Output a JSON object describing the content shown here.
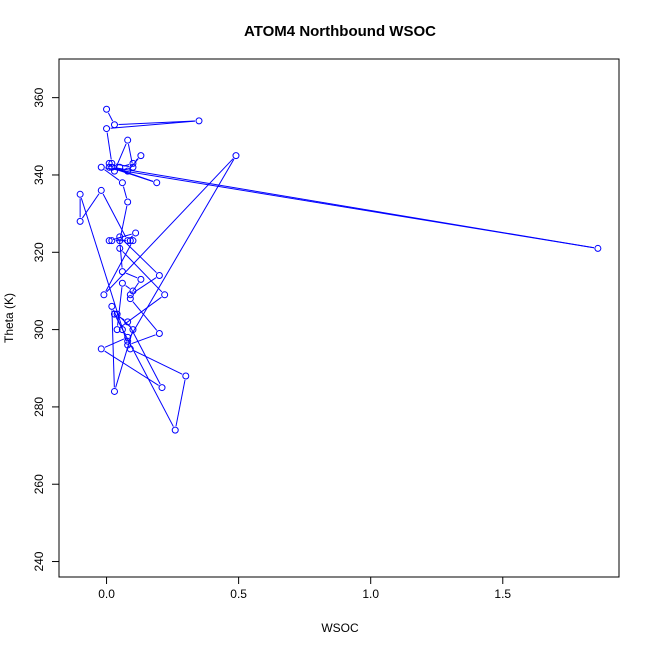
{
  "chart_data": {
    "type": "line",
    "title": "ATOM4 Northbound WSOC",
    "xlabel": "WSOC",
    "ylabel": "Theta (K)",
    "xlim": [
      -0.18,
      1.94
    ],
    "ylim": [
      236,
      370
    ],
    "x_ticks": [
      0.0,
      0.5,
      1.0,
      1.5
    ],
    "x_tick_labels": [
      "0.0",
      "0.5",
      "1.0",
      "1.5"
    ],
    "y_ticks": [
      240,
      260,
      280,
      300,
      320,
      340,
      360
    ],
    "y_tick_labels": [
      "240",
      "260",
      "280",
      "300",
      "320",
      "340",
      "360"
    ],
    "grid": false,
    "legend": "none",
    "marker": "open-circle",
    "series": [
      {
        "color": "#0000ff",
        "x": [
          0.0,
          0.03,
          0.35,
          0.0,
          0.02,
          0.1,
          0.08,
          0.03,
          0.01,
          0.05,
          0.1,
          0.13,
          0.08,
          0.01,
          0.19,
          0.02,
          1.86,
          -0.02,
          0.06,
          0.08,
          0.05,
          0.06,
          0.13,
          0.09,
          0.2,
          0.05,
          0.05,
          0.22,
          0.04,
          0.06,
          0.1,
          0.09,
          0.2,
          0.08,
          -0.1,
          -0.1,
          -0.02,
          0.08,
          0.11,
          0.01,
          0.02,
          0.09,
          0.1,
          -0.01,
          0.49,
          0.08,
          0.09,
          0.3,
          0.26,
          0.03,
          0.08,
          0.21,
          -0.02,
          0.08,
          0.06,
          0.02,
          0.03,
          0.1,
          0.04
        ],
        "y": [
          357,
          353,
          354,
          352,
          343,
          342,
          349,
          341,
          343,
          342,
          343,
          345,
          341,
          342,
          338,
          342,
          321,
          342,
          338,
          333,
          323,
          315,
          313,
          309,
          314,
          324,
          321,
          309,
          300,
          312,
          310,
          308,
          299,
          296,
          335,
          328,
          336,
          323,
          325,
          323,
          323,
          323,
          323,
          309,
          345,
          297,
          295,
          288,
          274,
          304,
          302,
          285,
          295,
          298,
          300,
          306,
          284,
          300,
          304
        ]
      }
    ]
  }
}
